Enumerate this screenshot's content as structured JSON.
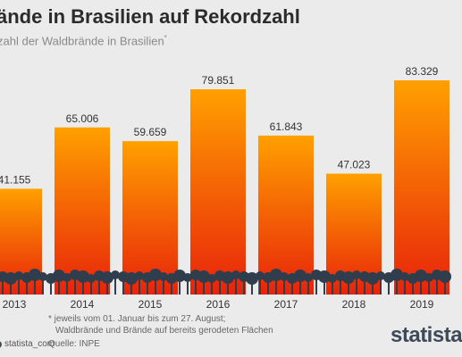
{
  "title": "ände in Brasilien auf Rekordzahl",
  "subtitle": "zahl der Waldbrände in Brasilien",
  "subtitle_marker": "*",
  "footnote_line1": "* jeweils vom 01. Januar bis zum 27. August;",
  "footnote_line2": "Waldbrände und Brände auf bereits gerodeten Flächen",
  "source": "Quelle: INPE",
  "brand": "statista",
  "social_handle": "statista_com",
  "colors": {
    "bar_top": "#ffa000",
    "bar_bottom": "#e8230a",
    "trees": "#2f3d4d",
    "background": "#ebebeb"
  },
  "chart_data": {
    "type": "bar",
    "categories": [
      "2013",
      "2014",
      "2015",
      "2016",
      "2017",
      "2018",
      "2019"
    ],
    "values": [
      41155,
      65006,
      59659,
      79851,
      61843,
      47023,
      83329
    ],
    "value_labels": [
      "41.155",
      "65.006",
      "59.659",
      "79.851",
      "61.843",
      "47.023",
      "83.329"
    ],
    "ylim": [
      0,
      100000
    ],
    "grid": false,
    "legend": "none"
  }
}
